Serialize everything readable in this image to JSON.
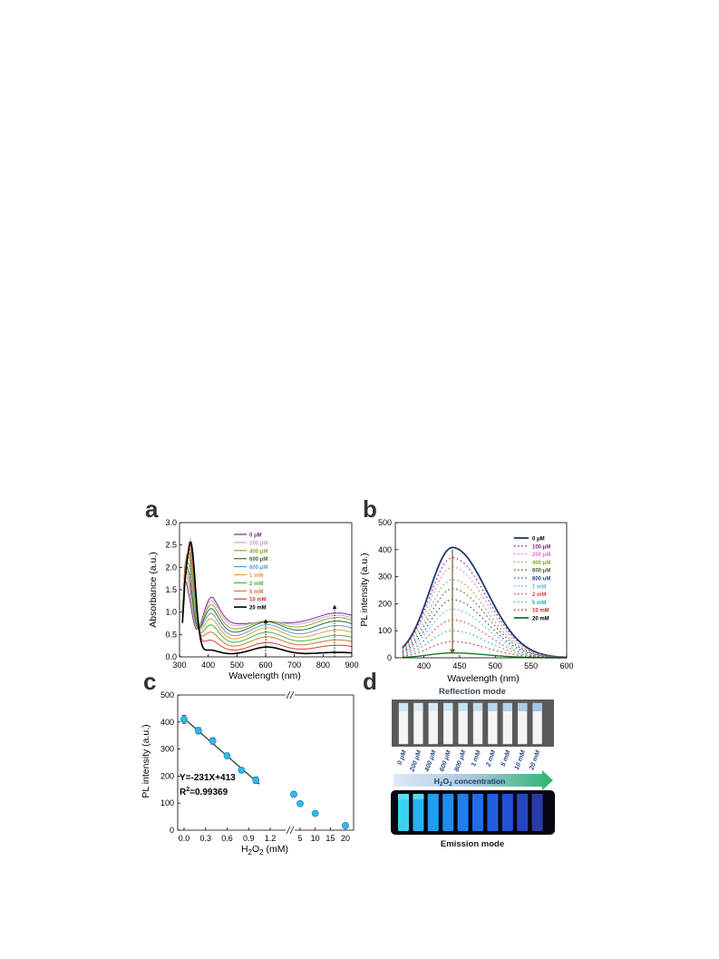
{
  "panels": {
    "a": {
      "letter": "a",
      "chart_data": {
        "type": "line",
        "xlabel": "Wavelength (nm)",
        "ylabel": "Absorbance (a.u.)",
        "xlim": [
          300,
          900
        ],
        "ylim": [
          0,
          3.0
        ],
        "xticks": [
          300,
          400,
          500,
          600,
          700,
          800,
          900
        ],
        "yticks": [
          0.0,
          0.5,
          1.0,
          1.5,
          2.0,
          2.5,
          3.0
        ],
        "legend_position": "top-right",
        "series": [
          {
            "name": "0 μM",
            "color": "#7b2a8a",
            "peak": 1.4,
            "peak_x": 325,
            "flat": 0.75,
            "dip": 0.72,
            "b600": 0.78,
            "b850": 0.98
          },
          {
            "name": "200 μM",
            "color": "#cfa0cf",
            "peak": 1.55,
            "peak_x": 326,
            "flat": 0.73,
            "dip": 0.66,
            "b600": 0.8,
            "b850": 0.93
          },
          {
            "name": "400 μM",
            "color": "#8fa836",
            "peak": 1.7,
            "peak_x": 327,
            "flat": 0.72,
            "dip": 0.58,
            "b600": 0.8,
            "b850": 0.88
          },
          {
            "name": "600 μM",
            "color": "#3a6a3a",
            "peak": 1.85,
            "peak_x": 328,
            "flat": 0.7,
            "dip": 0.5,
            "b600": 0.78,
            "b850": 0.8
          },
          {
            "name": "800 μM",
            "color": "#5aa0d8",
            "peak": 2.0,
            "peak_x": 330,
            "flat": 0.66,
            "dip": 0.42,
            "b600": 0.72,
            "b850": 0.7
          },
          {
            "name": "1 mM",
            "color": "#e8a030",
            "peak": 2.15,
            "peak_x": 331,
            "flat": 0.6,
            "dip": 0.35,
            "b600": 0.65,
            "b850": 0.6
          },
          {
            "name": "2 mM",
            "color": "#43b649",
            "peak": 2.25,
            "peak_x": 332,
            "flat": 0.52,
            "dip": 0.28,
            "b600": 0.55,
            "b850": 0.48
          },
          {
            "name": "5 mM",
            "color": "#c97b2a",
            "peak": 2.35,
            "peak_x": 334,
            "flat": 0.42,
            "dip": 0.2,
            "b600": 0.45,
            "b850": 0.38
          },
          {
            "name": "10 mM",
            "color": "#d63a2a",
            "peak": 2.45,
            "peak_x": 336,
            "flat": 0.3,
            "dip": 0.12,
            "b600": 0.32,
            "b850": 0.26
          },
          {
            "name": "20 mM",
            "color": "#000000",
            "peak": 2.55,
            "peak_x": 338,
            "flat": 0.12,
            "dip": 0.05,
            "b600": 0.22,
            "b850": 0.1
          }
        ],
        "annotations": [
          {
            "type": "arrow-up",
            "x": 600,
            "from": 0.0,
            "to": 0.8
          },
          {
            "type": "arrow-up",
            "x": 840,
            "from": 0.0,
            "to": 1.12
          },
          {
            "type": "dotted",
            "x": 338,
            "from": 1.4,
            "to": 2.65
          }
        ]
      }
    },
    "b": {
      "letter": "b",
      "chart_data": {
        "type": "line",
        "xlabel": "Wavelength (nm)",
        "ylabel": "PL intensity (a.u.)",
        "xlim": [
          360,
          600
        ],
        "ylim": [
          0,
          500
        ],
        "xticks": [
          400,
          450,
          500,
          550,
          600
        ],
        "yticks": [
          0,
          100,
          200,
          300,
          400,
          500
        ],
        "legend_position": "top-right",
        "series": [
          {
            "name": "0 μM",
            "color": "#1f3a6b",
            "peak": 408,
            "style": "solid"
          },
          {
            "name": "100 μM",
            "color": "#7b2a8a",
            "peak": 370,
            "style": "dotted"
          },
          {
            "name": "200 μM",
            "color": "#e070d0",
            "peak": 335,
            "style": "dotted"
          },
          {
            "name": "400 μM",
            "color": "#8fa836",
            "peak": 290,
            "style": "dotted"
          },
          {
            "name": "600 μM",
            "color": "#3a6a3a",
            "peak": 255,
            "style": "dotted"
          },
          {
            "name": "800 uM",
            "color": "#2a4a9a",
            "peak": 215,
            "style": "dotted"
          },
          {
            "name": "1 mM",
            "color": "#6ab0e8",
            "peak": 180,
            "style": "dotted"
          },
          {
            "name": "2 mM",
            "color": "#e04040",
            "peak": 140,
            "style": "dotted"
          },
          {
            "name": "5 mM",
            "color": "#20b0b0",
            "peak": 100,
            "style": "dotted"
          },
          {
            "name": "10 mM",
            "color": "#c03030",
            "peak": 60,
            "style": "dotted"
          },
          {
            "name": "20 mM",
            "color": "#1a7a2a",
            "peak": 18,
            "style": "solid"
          }
        ],
        "peak_x": 440,
        "arrow": {
          "x": 440,
          "from": 400,
          "to": 22
        }
      }
    },
    "c": {
      "letter": "c",
      "chart_data": {
        "type": "scatter",
        "xlabel": "H2O2 (mM)",
        "xlabel_main": "H",
        "xlabel_sub1": "2",
        "xlabel_mid": "O",
        "xlabel_sub2": "2",
        "xlabel_unit": " (mM)",
        "ylabel": "PL intensity (a.u.)",
        "ylim": [
          0,
          500
        ],
        "yticks": [
          0,
          100,
          200,
          300,
          400,
          500
        ],
        "xticks_left": [
          "0.0",
          "0.3",
          "0.6",
          "0.9",
          "1.2"
        ],
        "xticks_left_values": [
          0.0,
          0.3,
          0.6,
          0.9,
          1.2
        ],
        "xticks_right": [
          "5",
          "10",
          "15",
          "20"
        ],
        "xticks_right_values": [
          5,
          10,
          15,
          20
        ],
        "xlim_left": [
          -0.05,
          1.35
        ],
        "xlim_right": [
          2,
          21
        ],
        "axis_break": true,
        "points_left": [
          {
            "x": 0.0,
            "y": 410,
            "err": 15
          },
          {
            "x": 0.2,
            "y": 368,
            "err": 12
          },
          {
            "x": 0.4,
            "y": 330,
            "err": 12
          },
          {
            "x": 0.6,
            "y": 275,
            "err": 10
          },
          {
            "x": 0.8,
            "y": 222,
            "err": 10
          },
          {
            "x": 1.0,
            "y": 185,
            "err": 12
          }
        ],
        "points_right": [
          {
            "x": 2,
            "y": 133,
            "err": 10
          },
          {
            "x": 5,
            "y": 98,
            "err": 8
          },
          {
            "x": 10,
            "y": 62,
            "err": 6
          },
          {
            "x": 20,
            "y": 17,
            "err": 8
          }
        ],
        "fit": {
          "slope": -231,
          "intercept": 413,
          "x_from": 0.0,
          "x_to": 1.0
        },
        "equation": "Y=-231X+413",
        "r2_label": "R",
        "r2_sup": "2",
        "r2_value": "=0.99369"
      }
    },
    "d": {
      "letter": "d",
      "reflection_title": "Reflection mode",
      "emission_title": "Emission mode",
      "arrow_label_main": "H",
      "arrow_label_sub1": "2",
      "arrow_label_mid": "O",
      "arrow_label_sub2": "2",
      "arrow_label_rest": " concentration",
      "concentrations": [
        "0 μM",
        "200 μM",
        "400 μM",
        "600 μM",
        "800 μM",
        "1 mM",
        "2 mM",
        "5 mM",
        "10 mM",
        "20 mM"
      ],
      "emission_colors": [
        "#3ad0f0",
        "#24b4f2",
        "#1e9ef2",
        "#1e8ef0",
        "#1e7ef0",
        "#1f6ee8",
        "#2060e0",
        "#2252d4",
        "#2446c4",
        "#2a3aa8"
      ],
      "reflection_top_colors": [
        "#cfe8f4",
        "#d8ecf6",
        "#d6eaf4",
        "#cde6f4",
        "#c8e2f2",
        "#c2ddf0",
        "#b8d8ee",
        "#b0d2ec",
        "#a8cce8",
        "#a0c6e6"
      ]
    }
  }
}
